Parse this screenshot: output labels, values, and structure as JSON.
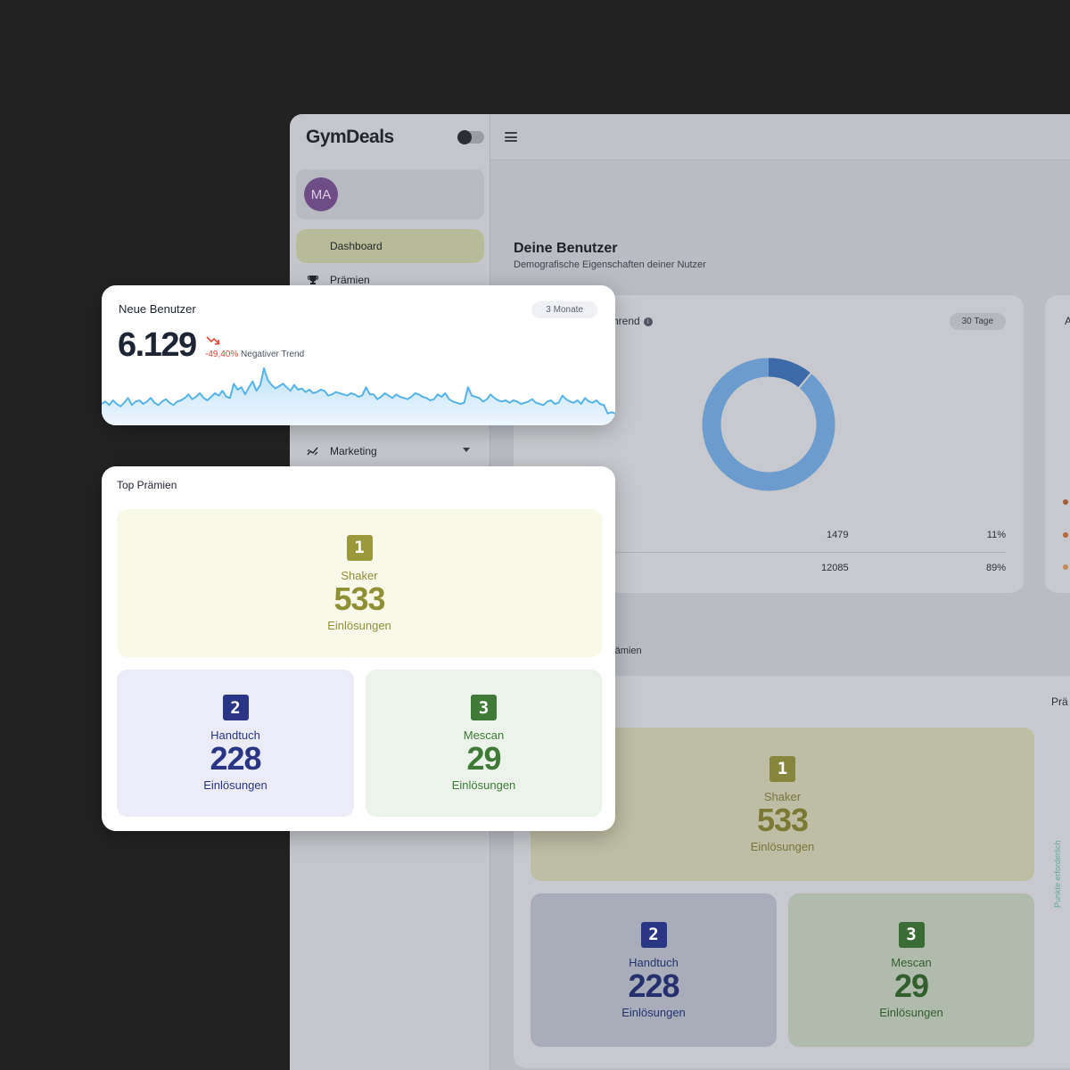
{
  "app": {
    "logo": "GymDeals",
    "user_initials": "MA",
    "nav": [
      {
        "label": "Dashboard",
        "icon": "dashboard-icon",
        "active": true
      },
      {
        "label": "Prämien",
        "icon": "trophy-icon"
      },
      {
        "label": "Marketing",
        "icon": "chart-icon"
      }
    ],
    "section": {
      "title": "Deine Benutzer",
      "subtitle": "Demografische Eigenschaften deiner Nutzer"
    },
    "gender_card": {
      "title_partial": "hrend",
      "range": "30 Tage",
      "rows": [
        {
          "value": "1479",
          "percent": "11%"
        },
        {
          "value": "12085",
          "percent": "89%"
        }
      ]
    },
    "right_card_initial": "A",
    "praemien_partial": "rämien",
    "praemien_right_partial": "Prä",
    "vertical_label": "Punkte erforderlich",
    "ranking": [
      {
        "rank": "1",
        "name": "Shaker",
        "value": "533",
        "unit": "Einlösungen"
      },
      {
        "rank": "2",
        "name": "Handtuch",
        "value": "228",
        "unit": "Einlösungen"
      },
      {
        "rank": "3",
        "name": "Mescan",
        "value": "29",
        "unit": "Einlösungen"
      }
    ],
    "colors": {
      "gold": "#9a9a3c",
      "navy": "#2a3585",
      "green": "#3f7a37",
      "donut_main": "#6b9ccd",
      "donut_small": "#3e6aaa"
    }
  },
  "neue_benutzer": {
    "title": "Neue Benutzer",
    "range": "3 Monate",
    "value": "6.129",
    "change": "-49,40%",
    "trend_label": "Negativer Trend"
  },
  "top_praemien": {
    "title": "Top Prämien",
    "items": [
      {
        "rank": "1",
        "name": "Shaker",
        "value": "533",
        "unit": "Einlösungen"
      },
      {
        "rank": "2",
        "name": "Handtuch",
        "value": "228",
        "unit": "Einlösungen"
      },
      {
        "rank": "3",
        "name": "Mescan",
        "value": "29",
        "unit": "Einlösungen"
      }
    ]
  },
  "chart_data": [
    {
      "type": "line",
      "series": [
        {
          "values": [
            28,
            30,
            27,
            31,
            28,
            26,
            29,
            33,
            27,
            30,
            31,
            28,
            30,
            33,
            29,
            27,
            30,
            32,
            29,
            27,
            30,
            31,
            33,
            36,
            32,
            34,
            37,
            33,
            31,
            34,
            37,
            35,
            39,
            34,
            33,
            45,
            40,
            42,
            36,
            42,
            47,
            39,
            44,
            58,
            48,
            44,
            41,
            43,
            45,
            42,
            39,
            44,
            40,
            41,
            38,
            40,
            37,
            38,
            40,
            39,
            35,
            36,
            38,
            37,
            36,
            35,
            37,
            36,
            34,
            35,
            42,
            36,
            36,
            32,
            34,
            37,
            35,
            33,
            36,
            34,
            33,
            32,
            34,
            37,
            36,
            34,
            33,
            31,
            32,
            36,
            34,
            37,
            32,
            30,
            29,
            28,
            29,
            42,
            35,
            34,
            33,
            30,
            32,
            36,
            33,
            31,
            30,
            31,
            29,
            31,
            30,
            28,
            29,
            30,
            32,
            29,
            28,
            27,
            30,
            31,
            28,
            29,
            35,
            32,
            30,
            29,
            31,
            28,
            33,
            30,
            29,
            31,
            28,
            27,
            20,
            21,
            20
          ]
        }
      ]
    },
    {
      "type": "pie",
      "values": [
        11,
        89
      ]
    }
  ]
}
